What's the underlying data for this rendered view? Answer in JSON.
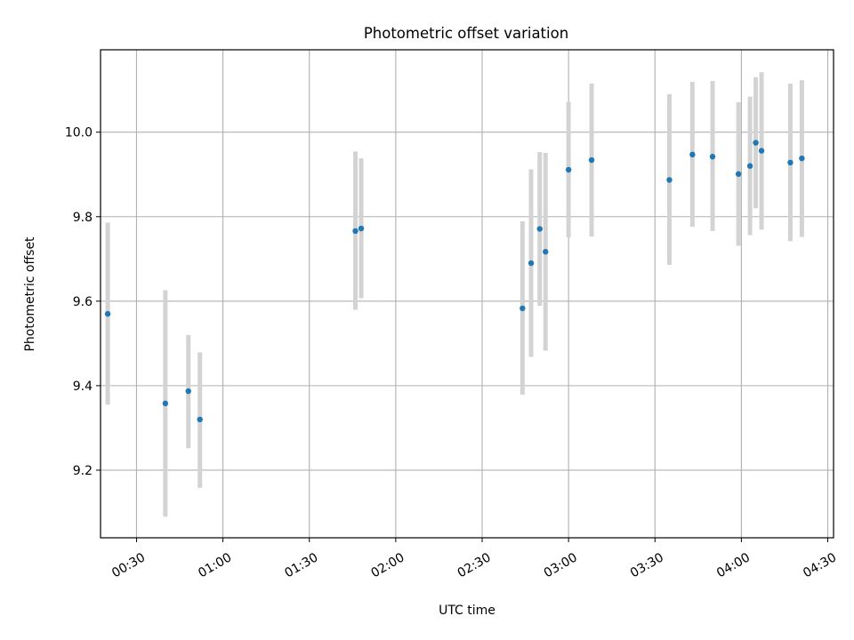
{
  "chart_data": {
    "type": "scatter",
    "title": "Photometric offset variation",
    "xlabel": "UTC time",
    "ylabel": "Photometric offset",
    "x_axis": {
      "kind": "time",
      "range": [
        "00:17:30",
        "04:32:00"
      ],
      "ticks": [
        "00:30",
        "01:00",
        "01:30",
        "02:00",
        "02:30",
        "03:00",
        "03:30",
        "04:00",
        "04:30"
      ]
    },
    "y_axis": {
      "range": [
        9.04,
        10.195
      ],
      "ticks": [
        9.2,
        9.4,
        9.6,
        9.8,
        10.0
      ],
      "tick_labels": [
        "9.2",
        "9.4",
        "9.6",
        "9.8",
        "10.0"
      ]
    },
    "grid": true,
    "colors": {
      "point": "#1f77b4",
      "errorbar": "#d3d3d3"
    },
    "points": [
      {
        "time": "00:20",
        "value": 9.57,
        "low": 9.355,
        "high": 9.786
      },
      {
        "time": "00:40",
        "value": 9.358,
        "low": 9.09,
        "high": 9.626
      },
      {
        "time": "00:48",
        "value": 9.387,
        "low": 9.252,
        "high": 9.52
      },
      {
        "time": "00:52",
        "value": 9.32,
        "low": 9.158,
        "high": 9.479
      },
      {
        "time": "01:46",
        "value": 9.766,
        "low": 9.58,
        "high": 9.954
      },
      {
        "time": "01:48",
        "value": 9.772,
        "low": 9.607,
        "high": 9.938
      },
      {
        "time": "02:44",
        "value": 9.583,
        "low": 9.379,
        "high": 9.789
      },
      {
        "time": "02:47",
        "value": 9.69,
        "low": 9.468,
        "high": 9.912
      },
      {
        "time": "02:50",
        "value": 9.771,
        "low": 9.589,
        "high": 9.953
      },
      {
        "time": "02:52",
        "value": 9.717,
        "low": 9.483,
        "high": 9.951
      },
      {
        "time": "03:00",
        "value": 9.911,
        "low": 9.751,
        "high": 10.072
      },
      {
        "time": "03:08",
        "value": 9.934,
        "low": 9.753,
        "high": 10.115
      },
      {
        "time": "03:35",
        "value": 9.887,
        "low": 9.686,
        "high": 10.09
      },
      {
        "time": "03:43",
        "value": 9.947,
        "low": 9.776,
        "high": 10.119
      },
      {
        "time": "03:50",
        "value": 9.942,
        "low": 9.766,
        "high": 10.121
      },
      {
        "time": "03:59",
        "value": 9.901,
        "low": 9.731,
        "high": 10.071
      },
      {
        "time": "04:03",
        "value": 9.92,
        "low": 9.756,
        "high": 10.084
      },
      {
        "time": "04:05",
        "value": 9.975,
        "low": 9.82,
        "high": 10.13
      },
      {
        "time": "04:07",
        "value": 9.956,
        "low": 9.769,
        "high": 10.142
      },
      {
        "time": "04:17",
        "value": 9.928,
        "low": 9.742,
        "high": 10.115
      },
      {
        "time": "04:21",
        "value": 9.938,
        "low": 9.752,
        "high": 10.123
      }
    ]
  }
}
